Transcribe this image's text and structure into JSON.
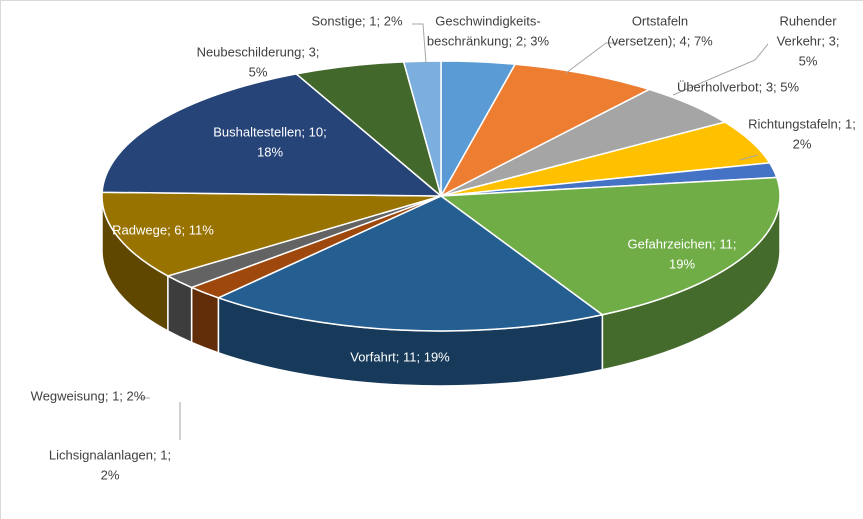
{
  "chart_data": {
    "type": "pie",
    "categories": [
      "Geschwindigkeitsbeschränkung",
      "Ortstafeln (versetzen)",
      "Ruhender Verkehr",
      "Überholverbot",
      "Richtungstafeln",
      "Gefahrzeichen",
      "Vorfahrt",
      "Lichsignalanlagen",
      "Wegweisung",
      "Radwege",
      "Bushaltestellen",
      "Neubeschilderung",
      "Sonstige"
    ],
    "values": [
      2,
      4,
      3,
      3,
      1,
      11,
      11,
      1,
      1,
      6,
      10,
      3,
      1
    ],
    "value_labels": [
      [
        "Geschwindigkeits-",
        "beschränkung; 2; 3%"
      ],
      [
        "Ortstafeln",
        "(versetzen); 4; 7%"
      ],
      [
        "Ruhender",
        "Verkehr; 3;",
        "5%"
      ],
      [
        "Überholverbot; 3; 5%"
      ],
      [
        "Richtungstafeln; 1;",
        "2%"
      ],
      [
        "Gefahrzeichen; 11;",
        "19%"
      ],
      [
        "Vorfahrt; 11; 19%"
      ],
      [
        "Lichsignalanlagen; 1;",
        "2%"
      ],
      [
        "Wegweisung; 1; 2%"
      ],
      [
        "Radwege; 6; 11%"
      ],
      [
        "Bushaltestellen; 10;",
        "18%"
      ],
      [
        "Neubeschilderung; 3;",
        "5%"
      ],
      [
        "Sonstige; 1; 2%"
      ]
    ],
    "colors": [
      "#5b9bd5",
      "#ed7d31",
      "#a5a5a5",
      "#ffc000",
      "#4472c4",
      "#70ad47",
      "#255e91",
      "#9e480e",
      "#636363",
      "#997300",
      "#264478",
      "#43682b",
      "#7cafdd"
    ]
  }
}
